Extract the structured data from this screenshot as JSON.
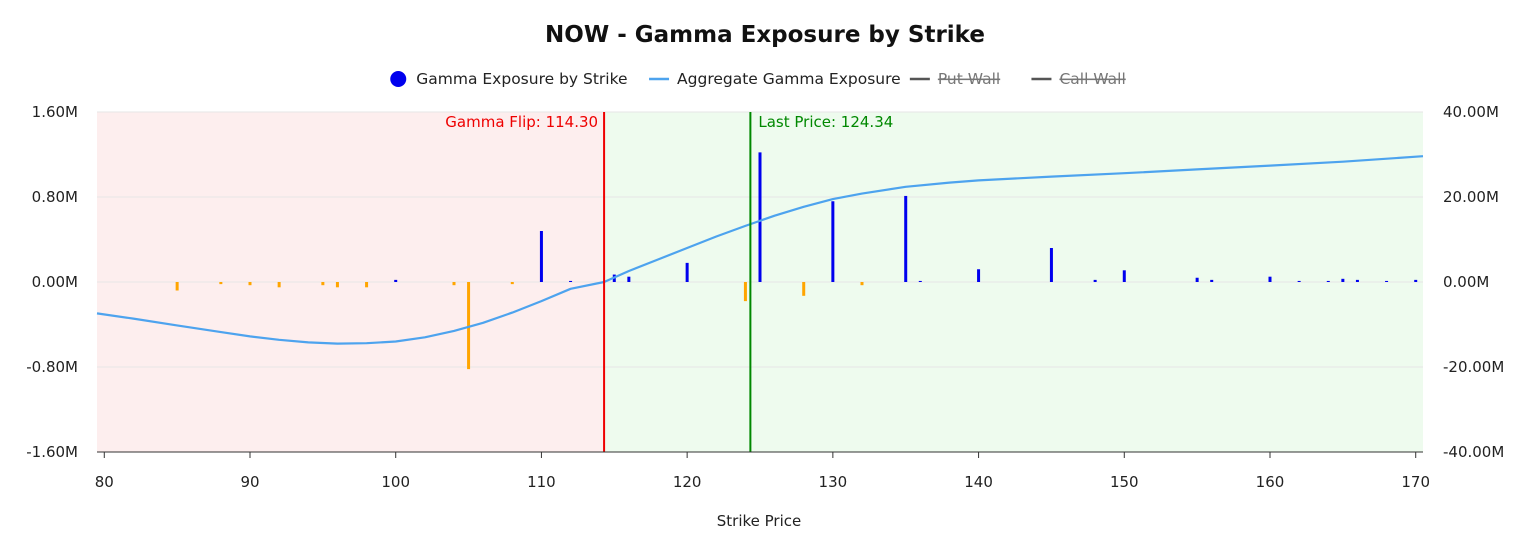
{
  "chart_data": {
    "type": "bar",
    "title": "NOW - Gamma Exposure by Strike",
    "xlabel": "Strike Price",
    "ylabel": "",
    "xlim": [
      79.5,
      170.5
    ],
    "ylim": [
      -1.6,
      1.6
    ],
    "y2lim": [
      -40,
      40
    ],
    "x_ticks": [
      80,
      90,
      100,
      110,
      120,
      130,
      140,
      150,
      160,
      170
    ],
    "y_tick_labels": [
      "1.60M",
      "0.80M",
      "0.00M",
      "-0.80M",
      "-1.60M"
    ],
    "y2_tick_labels": [
      "40.00M",
      "20.00M",
      "0.00M",
      "-20.00M",
      "-40.00M"
    ],
    "grid": true,
    "legend_position": "top-center",
    "legend": [
      {
        "label": "Gamma Exposure by Strike",
        "symbol": "dot",
        "color": "#0000ee",
        "hidden": false
      },
      {
        "label": "Aggregate Gamma Exposure",
        "symbol": "line",
        "color": "#4da3ee",
        "hidden": false
      },
      {
        "label": "Put Wall",
        "symbol": "line",
        "color": "#555555",
        "hidden": true
      },
      {
        "label": "Call Wall",
        "symbol": "line",
        "color": "#555555",
        "hidden": true
      }
    ],
    "colors": {
      "positive_bar": "#0000ee",
      "negative_bar": "#ffa500",
      "aggregate_line": "#4da3ee",
      "negative_region": "#fdeeee",
      "positive_region": "#eefbee",
      "flip_line": "#ee0000",
      "price_line": "#008800"
    },
    "series": [
      {
        "name": "Gamma Exposure by Strike",
        "axis": "left",
        "unit": "M",
        "x": [
          85,
          88,
          90,
          92,
          95,
          96,
          98,
          100,
          104,
          105,
          108,
          110,
          112,
          115,
          116,
          120,
          124,
          125,
          128,
          130,
          132,
          135,
          136,
          140,
          145,
          148,
          150,
          155,
          156,
          160,
          162,
          164,
          165,
          166,
          168,
          170
        ],
        "values": [
          -0.08,
          -0.02,
          -0.03,
          -0.05,
          -0.03,
          -0.05,
          -0.05,
          0.02,
          -0.03,
          -0.82,
          -0.02,
          0.48,
          0.01,
          0.07,
          0.05,
          0.18,
          -0.18,
          1.22,
          -0.13,
          0.76,
          -0.03,
          0.81,
          0.01,
          0.12,
          0.32,
          0.02,
          0.11,
          0.04,
          0.02,
          0.05,
          0.01,
          0.01,
          0.03,
          0.02,
          0.01,
          0.02
        ]
      },
      {
        "name": "Aggregate Gamma Exposure",
        "axis": "right",
        "unit": "M",
        "x": [
          79.5,
          82,
          85,
          88,
          90,
          92,
          94,
          96,
          98,
          100,
          102,
          104,
          106,
          108,
          110,
          112,
          114.3,
          116,
          118,
          120,
          122,
          124,
          126,
          128,
          130,
          132,
          135,
          138,
          140,
          145,
          150,
          155,
          160,
          165,
          170.5
        ],
        "values": [
          -7.4,
          -8.6,
          -10.2,
          -11.8,
          -12.8,
          -13.6,
          -14.2,
          -14.5,
          -14.4,
          -14.0,
          -13.0,
          -11.5,
          -9.6,
          -7.2,
          -4.5,
          -1.6,
          0.0,
          2.6,
          5.3,
          8.0,
          10.7,
          13.2,
          15.6,
          17.7,
          19.5,
          20.8,
          22.4,
          23.4,
          23.9,
          24.8,
          25.6,
          26.5,
          27.4,
          28.3,
          29.6
        ]
      }
    ],
    "annotations": [
      {
        "label": "Gamma Flip: 114.30",
        "x": 114.3,
        "color": "#ee0000",
        "label_side": "left"
      },
      {
        "label": "Last Price: 124.34",
        "x": 124.34,
        "color": "#008800",
        "label_side": "right"
      }
    ]
  }
}
